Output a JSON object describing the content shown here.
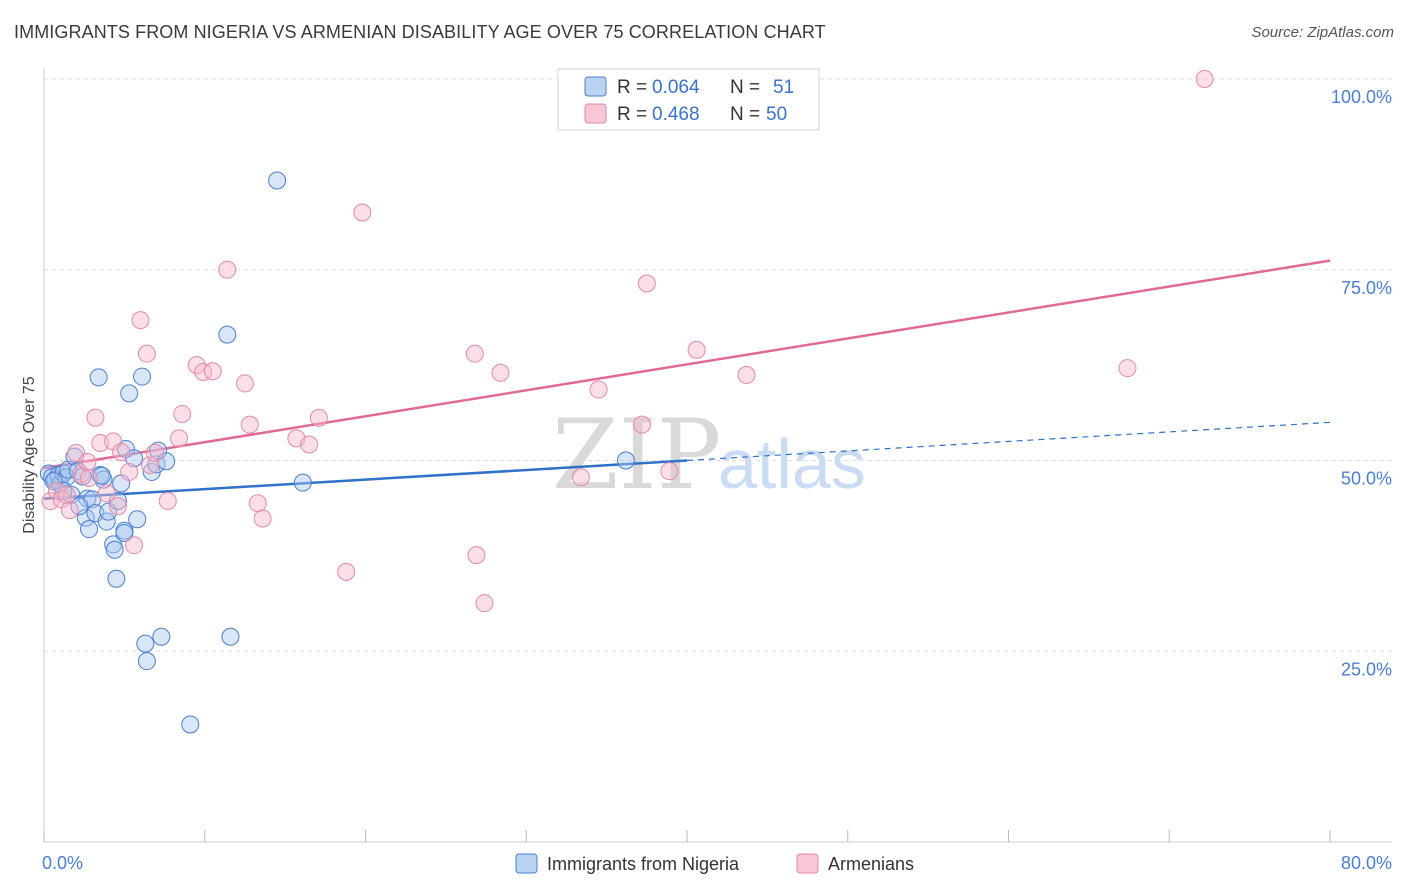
{
  "header": {
    "title": "IMMIGRANTS FROM NIGERIA VS ARMENIAN DISABILITY AGE OVER 75 CORRELATION CHART",
    "source": "Source: ZipAtlas.com"
  },
  "watermark": {
    "zip": "ZIP",
    "atlas": "atlas"
  },
  "colors": {
    "nigeria_fill": "#a9c8f0",
    "nigeria_stroke": "#4a7fd1",
    "nigeria_line": "#2f72c9",
    "armenian_fill": "#f6b9cc",
    "armenian_stroke": "#e28aa8",
    "armenian_line": "#e06a95",
    "grid": "#dddddd",
    "tick_text": "#4a7fd1"
  },
  "legend": {
    "rows": [
      {
        "r_label": "R =",
        "r_value": "0.064",
        "n_label": "N =",
        "n_value": "51"
      },
      {
        "r_label": "R =",
        "r_value": "0.468",
        "n_label": "N =",
        "n_value": "50"
      }
    ]
  },
  "chart_data": {
    "type": "scatter",
    "title": "IMMIGRANTS FROM NIGERIA VS ARMENIAN DISABILITY AGE OVER 75 CORRELATION CHART",
    "xlabel": "",
    "ylabel": "Disability Age Over 75",
    "xlim": [
      0,
      80
    ],
    "ylim": [
      0,
      102
    ],
    "x_tick_labels": [
      "0.0%",
      "80.0%"
    ],
    "y_ticks": [
      {
        "value": 25,
        "label": "25.0%"
      },
      {
        "value": 50,
        "label": "50.0%"
      },
      {
        "value": 75,
        "label": "75.0%"
      },
      {
        "value": 100,
        "label": "100.0%"
      }
    ],
    "series": [
      {
        "name": "Immigrants from Nigeria",
        "r": 0.064,
        "n": 51,
        "trend": {
          "x0": 0,
          "y0": 45.0,
          "x1": 40,
          "y1": 50.0,
          "dash_to_x": 80,
          "dash_to_y": 55.0
        },
        "points": [
          [
            0.3,
            48.3
          ],
          [
            0.5,
            47.8
          ],
          [
            0.7,
            47.5
          ],
          [
            0.9,
            48.1
          ],
          [
            1.0,
            46.9
          ],
          [
            1.2,
            48.3
          ],
          [
            1.4,
            47.8
          ],
          [
            1.5,
            48.8
          ],
          [
            1.7,
            45.5
          ],
          [
            1.9,
            50.5
          ],
          [
            2.1,
            48.6
          ],
          [
            2.4,
            47.9
          ],
          [
            2.6,
            42.5
          ],
          [
            2.7,
            45.0
          ],
          [
            2.8,
            41.0
          ],
          [
            3.0,
            44.9
          ],
          [
            3.2,
            43.1
          ],
          [
            3.4,
            60.9
          ],
          [
            3.5,
            48.1
          ],
          [
            3.7,
            47.5
          ],
          [
            3.9,
            42.0
          ],
          [
            4.0,
            43.3
          ],
          [
            4.3,
            39.0
          ],
          [
            4.4,
            38.3
          ],
          [
            4.6,
            44.7
          ],
          [
            4.8,
            47.0
          ],
          [
            5.0,
            40.8
          ],
          [
            5.1,
            51.5
          ],
          [
            5.3,
            58.8
          ],
          [
            5.6,
            50.3
          ],
          [
            5.8,
            42.3
          ],
          [
            6.1,
            61.0
          ],
          [
            6.3,
            26.0
          ],
          [
            6.4,
            23.7
          ],
          [
            6.7,
            48.5
          ],
          [
            7.0,
            49.5
          ],
          [
            7.1,
            51.3
          ],
          [
            7.3,
            26.9
          ],
          [
            7.6,
            49.9
          ],
          [
            9.1,
            15.4
          ],
          [
            11.4,
            66.5
          ],
          [
            11.6,
            26.9
          ],
          [
            14.5,
            86.7
          ],
          [
            16.1,
            47.1
          ],
          [
            36.2,
            50.0
          ],
          [
            1.2,
            46.0
          ],
          [
            2.2,
            44.0
          ],
          [
            4.5,
            34.5
          ],
          [
            5.0,
            40.5
          ],
          [
            0.6,
            47.3
          ],
          [
            3.6,
            48.0
          ]
        ]
      },
      {
        "name": "Armenians",
        "r": 0.468,
        "n": 50,
        "trend": {
          "x0": 0,
          "y0": 49.0,
          "x1": 80,
          "y1": 76.2
        },
        "points": [
          [
            0.4,
            44.7
          ],
          [
            0.8,
            46.0
          ],
          [
            1.1,
            44.9
          ],
          [
            1.4,
            45.5
          ],
          [
            1.6,
            43.5
          ],
          [
            2.0,
            51.0
          ],
          [
            2.3,
            48.2
          ],
          [
            2.7,
            49.8
          ],
          [
            3.2,
            55.6
          ],
          [
            3.5,
            52.3
          ],
          [
            3.9,
            45.7
          ],
          [
            4.3,
            52.5
          ],
          [
            4.8,
            51.1
          ],
          [
            5.3,
            48.5
          ],
          [
            5.6,
            38.9
          ],
          [
            6.0,
            68.4
          ],
          [
            6.4,
            64.0
          ],
          [
            6.6,
            49.4
          ],
          [
            6.9,
            51.0
          ],
          [
            7.7,
            44.7
          ],
          [
            8.4,
            52.9
          ],
          [
            8.6,
            56.1
          ],
          [
            9.5,
            62.5
          ],
          [
            9.9,
            61.6
          ],
          [
            10.5,
            61.7
          ],
          [
            11.4,
            75.0
          ],
          [
            12.5,
            60.1
          ],
          [
            12.8,
            54.7
          ],
          [
            13.3,
            44.4
          ],
          [
            13.6,
            42.4
          ],
          [
            15.7,
            52.9
          ],
          [
            16.5,
            52.1
          ],
          [
            17.1,
            55.6
          ],
          [
            18.8,
            35.4
          ],
          [
            19.8,
            82.5
          ],
          [
            26.8,
            64.0
          ],
          [
            26.9,
            37.6
          ],
          [
            27.4,
            31.3
          ],
          [
            28.4,
            61.5
          ],
          [
            33.4,
            47.8
          ],
          [
            34.5,
            59.3
          ],
          [
            37.2,
            54.7
          ],
          [
            37.5,
            73.2
          ],
          [
            38.9,
            48.6
          ],
          [
            40.6,
            64.5
          ],
          [
            43.7,
            61.2
          ],
          [
            67.4,
            62.1
          ],
          [
            72.2,
            100.0
          ],
          [
            2.8,
            47.7
          ],
          [
            4.6,
            44.0
          ]
        ]
      }
    ]
  },
  "bottom_legend": {
    "items": [
      {
        "label": "Immigrants from Nigeria"
      },
      {
        "label": "Armenians"
      }
    ]
  }
}
